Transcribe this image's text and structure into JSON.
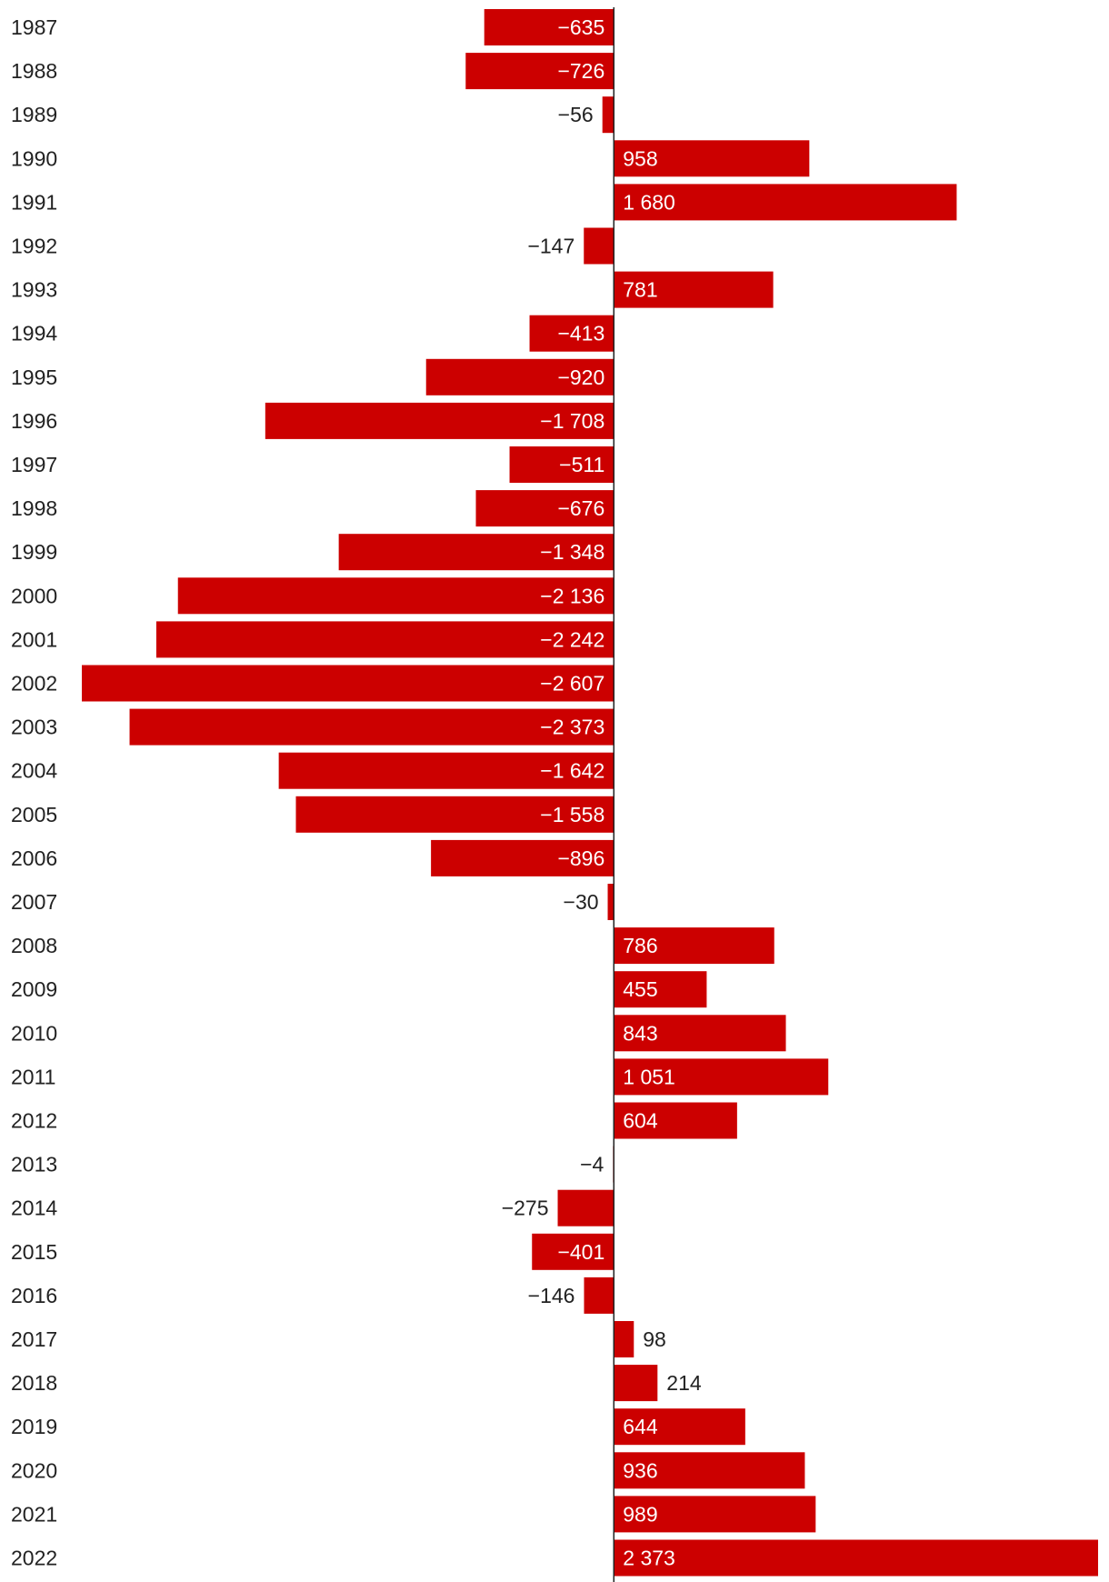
{
  "chart_data": {
    "type": "bar",
    "orientation": "horizontal",
    "title": "",
    "xlabel": "",
    "ylabel": "",
    "grid": false,
    "xlim": [
      -2607,
      2373
    ],
    "bar_color": "#cc0000",
    "categories": [
      "1987",
      "1988",
      "1989",
      "1990",
      "1991",
      "1992",
      "1993",
      "1994",
      "1995",
      "1996",
      "1997",
      "1998",
      "1999",
      "2000",
      "2001",
      "2002",
      "2003",
      "2004",
      "2005",
      "2006",
      "2007",
      "2008",
      "2009",
      "2010",
      "2011",
      "2012",
      "2013",
      "2014",
      "2015",
      "2016",
      "2017",
      "2018",
      "2019",
      "2020",
      "2021",
      "2022"
    ],
    "values": [
      -635,
      -726,
      -56,
      958,
      1680,
      -147,
      781,
      -413,
      -920,
      -1708,
      -511,
      -676,
      -1348,
      -2136,
      -2242,
      -2607,
      -2373,
      -1642,
      -1558,
      -896,
      -30,
      786,
      455,
      843,
      1051,
      604,
      -4,
      -275,
      -401,
      -146,
      98,
      214,
      644,
      936,
      989,
      2373
    ],
    "value_labels": [
      "−635",
      "−726",
      "−56",
      "958",
      "1 680",
      "−147",
      "781",
      "−413",
      "−920",
      "−1 708",
      "−511",
      "−676",
      "−1 348",
      "−2 136",
      "−2 242",
      "−2 607",
      "−2 373",
      "−1 642",
      "−1 558",
      "−896",
      "−30",
      "786",
      "455",
      "843",
      "1 051",
      "604",
      "−4",
      "−275",
      "−401",
      "−146",
      "98",
      "214",
      "644",
      "936",
      "989",
      "2 373"
    ]
  }
}
